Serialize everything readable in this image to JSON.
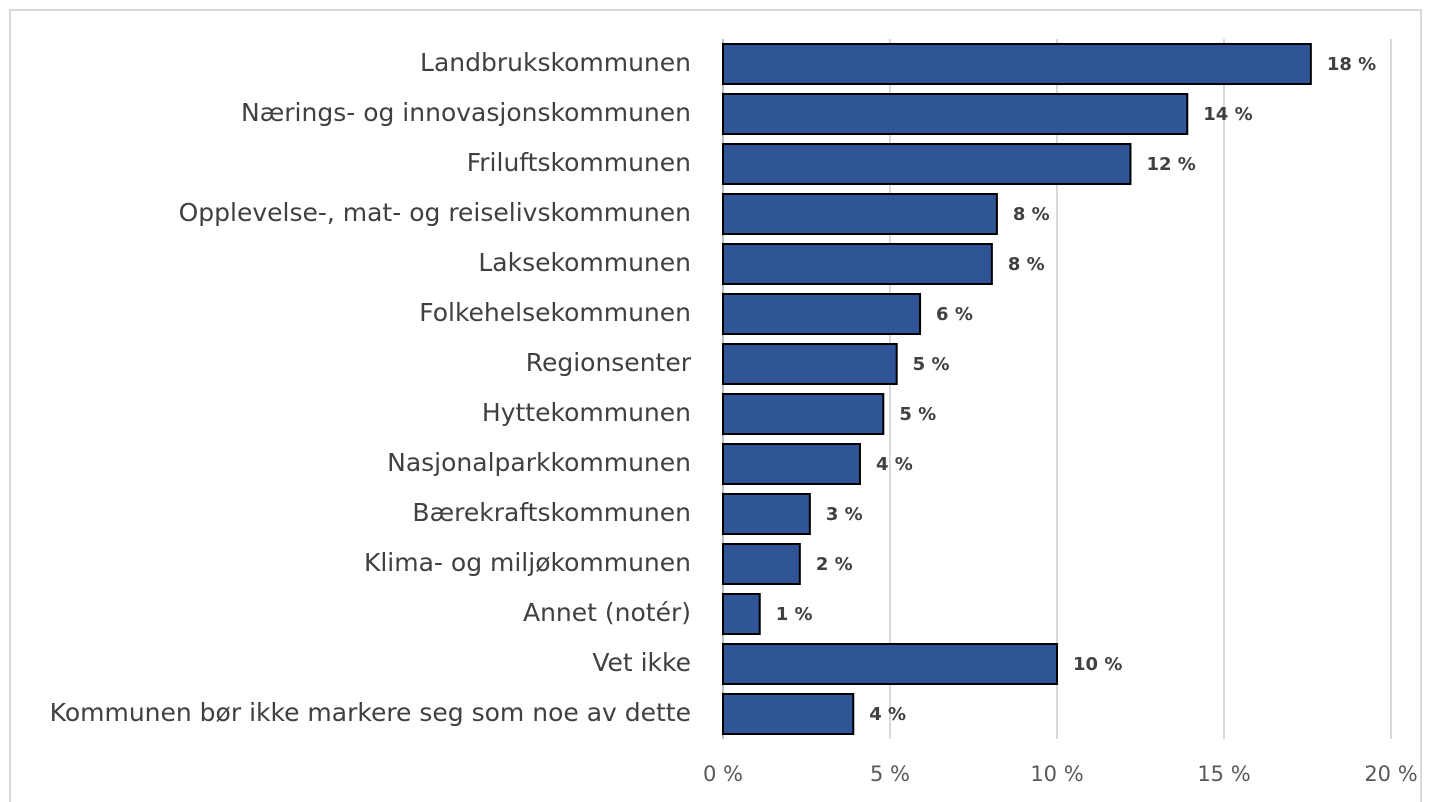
{
  "chart_data": {
    "type": "bar",
    "orientation": "horizontal",
    "categories": [
      "Landbrukskommunen",
      "Nærings- og innovasjonskommunen",
      "Friluftskommunen",
      "Opplevelse-, mat- og reiselivskommunen",
      "Laksekommunen",
      "Folkehelsekommunen",
      "Regionsenter",
      "Hyttekommunen",
      "Nasjonalparkkommunen",
      "Bærekraftskommunen",
      "Klima- og miljøkommunen",
      "Annet (notér)",
      "Vet ikke",
      "Kommunen bør ikke markere seg som noe av dette"
    ],
    "values": [
      17.6,
      13.9,
      12.2,
      8.2,
      8.05,
      5.9,
      5.2,
      4.8,
      4.1,
      2.6,
      2.3,
      1.1,
      10.0,
      3.9
    ],
    "value_labels": [
      "18 %",
      "14 %",
      "12 %",
      "8 %",
      "8 %",
      "6 %",
      "5 %",
      "5 %",
      "4 %",
      "3 %",
      "2 %",
      "1 %",
      "10 %",
      "4 %"
    ],
    "color": "#2f5597",
    "xlim": [
      0,
      20
    ],
    "xticks": [
      {
        "value": 0,
        "label": "0 %"
      },
      {
        "value": 5,
        "label": "5 %"
      },
      {
        "value": 10,
        "label": "10 %"
      },
      {
        "value": 15,
        "label": "15 %"
      },
      {
        "value": 20,
        "label": "20 %"
      }
    ],
    "grid": true
  }
}
